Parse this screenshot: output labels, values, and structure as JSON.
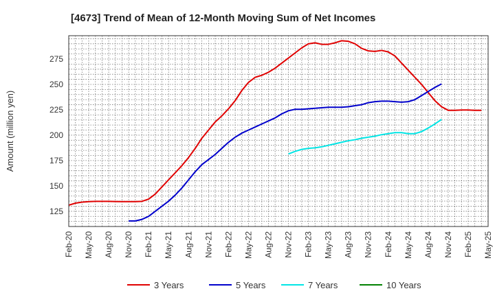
{
  "chart_data": {
    "type": "line",
    "title": "[4673]  Trend of Mean of 12-Month Moving Sum of Net Incomes",
    "xlabel": "",
    "ylabel": "Amount (million yen)",
    "ylim": [
      110,
      298
    ],
    "yticks": [
      125,
      150,
      175,
      200,
      225,
      250,
      275
    ],
    "xticks": [
      "Feb-20",
      "May-20",
      "Aug-20",
      "Nov-20",
      "Feb-21",
      "May-21",
      "Aug-21",
      "Nov-21",
      "Feb-22",
      "May-22",
      "Aug-22",
      "Nov-22",
      "Feb-23",
      "May-23",
      "Aug-23",
      "Nov-23",
      "Feb-24",
      "May-24",
      "Aug-24",
      "Nov-24",
      "Feb-25",
      "May-25"
    ],
    "grid": true,
    "legend_position": "bottom",
    "series": [
      {
        "name": "3 Years",
        "color": "#e00000",
        "start": "Feb-20",
        "values": [
          131,
          133,
          134,
          134.5,
          134.8,
          134.8,
          134.8,
          134.6,
          134.5,
          134.5,
          134.5,
          134.8,
          137,
          142,
          149,
          156,
          163,
          170,
          178,
          187,
          197,
          205,
          213,
          219,
          226,
          234,
          244,
          252,
          257,
          259,
          262,
          266,
          271,
          276,
          281,
          286,
          290,
          291,
          289.5,
          289.5,
          291,
          293,
          292.5,
          290,
          285.5,
          283,
          282.5,
          283.5,
          282,
          278,
          271,
          264,
          257,
          250,
          242,
          234,
          228,
          224.5,
          224.5,
          224.8,
          224.8,
          224.5,
          224.5
        ]
      },
      {
        "name": "5 Years",
        "color": "#0000cc",
        "start": "Nov-20",
        "values": [
          115.5,
          115.5,
          117,
          120,
          125,
          130,
          135,
          141,
          148,
          156,
          164,
          171,
          176,
          181,
          187,
          193,
          198,
          202,
          205,
          208,
          211,
          214,
          217,
          221,
          224,
          225.5,
          225.5,
          226,
          226.5,
          227,
          227.5,
          227.5,
          227.5,
          228,
          229,
          230,
          232,
          233,
          233.5,
          233.5,
          233,
          232.5,
          233,
          235,
          239,
          243,
          247,
          250.5
        ]
      },
      {
        "name": "7 Years",
        "color": "#00e5e5",
        "start": "Nov-22",
        "values": [
          181.5,
          184,
          186,
          187,
          187.5,
          188.5,
          190,
          191.5,
          193,
          194.5,
          195.5,
          197,
          198,
          199,
          200.5,
          201.5,
          202.5,
          202.5,
          201.5,
          201.5,
          203.5,
          207,
          211,
          215.5
        ]
      },
      {
        "name": "10 Years",
        "color": "#008000",
        "start": "",
        "values": []
      }
    ]
  }
}
